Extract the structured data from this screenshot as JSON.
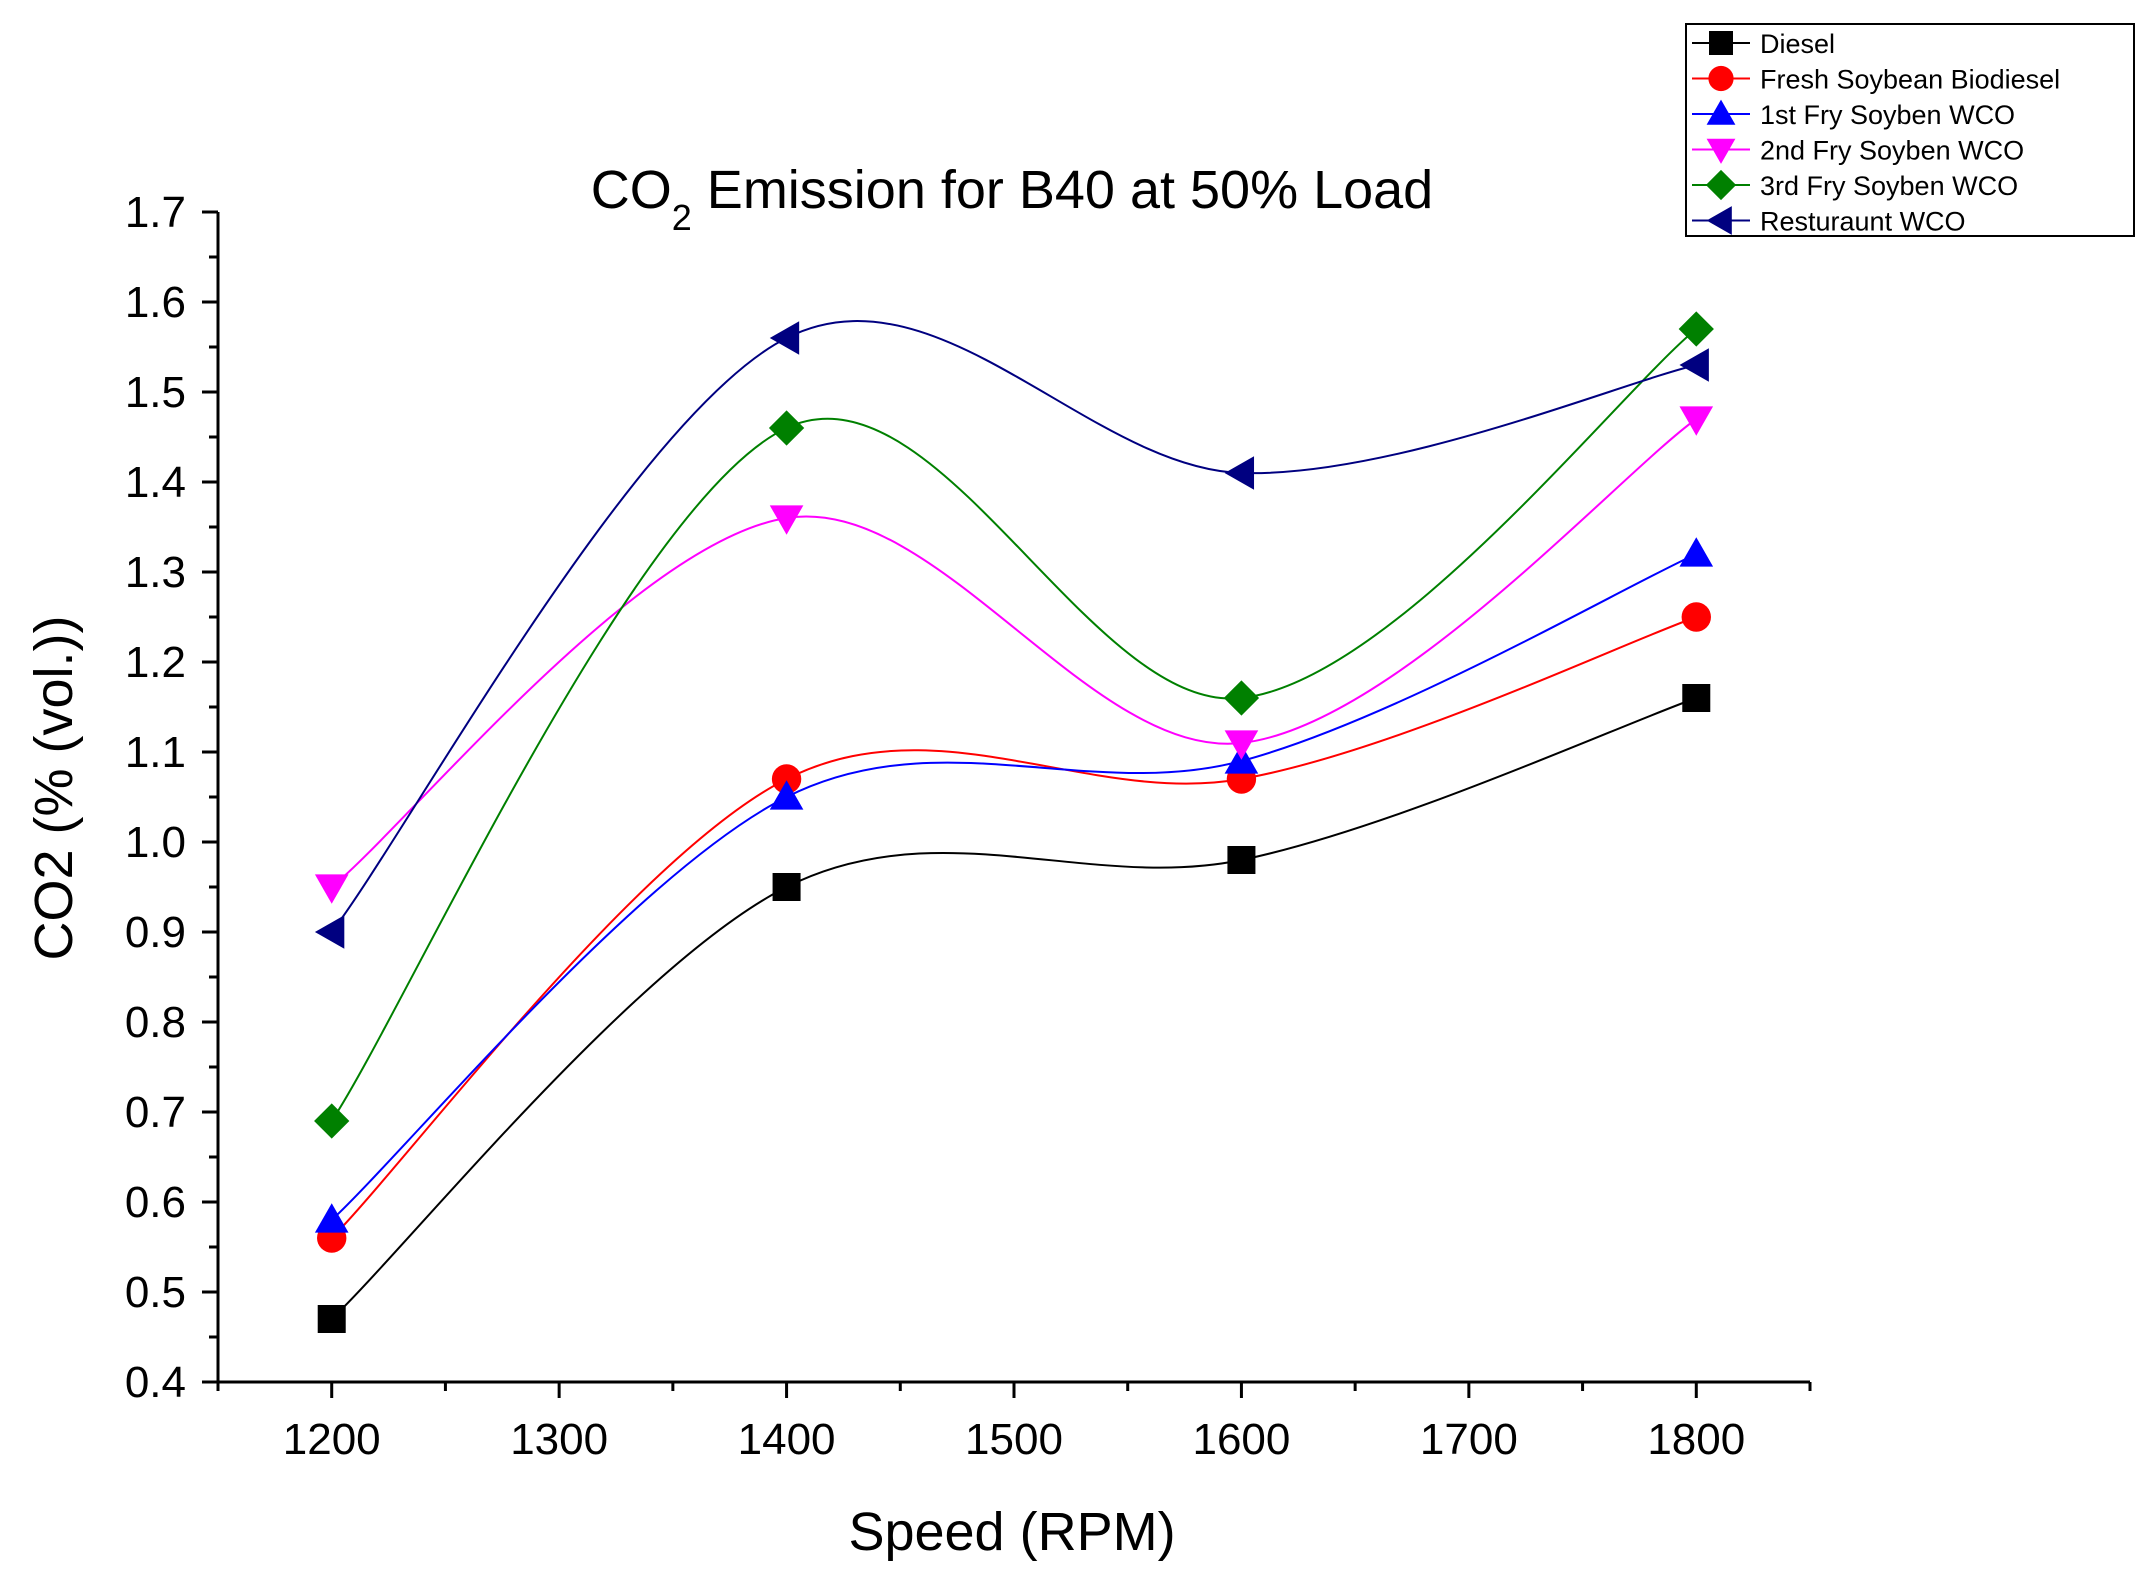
{
  "chart_data": {
    "type": "line",
    "title": "CO",
    "title_subscript": "2",
    "title_suffix": " Emission for B40 at 50% Load",
    "xlabel": "Speed (RPM)",
    "ylabel": "CO2 (% (vol.))",
    "xlim": [
      1150,
      1850
    ],
    "ylim": [
      0.4,
      1.7
    ],
    "xticks": [
      1200,
      1300,
      1400,
      1500,
      1600,
      1700,
      1800
    ],
    "xtick_labels": [
      "1200",
      "1300",
      "1400",
      "1500",
      "1600",
      "1700",
      "1800"
    ],
    "yticks": [
      0.4,
      0.5,
      0.6,
      0.7,
      0.8,
      0.9,
      1.0,
      1.1,
      1.2,
      1.3,
      1.4,
      1.5,
      1.6,
      1.7
    ],
    "ytick_labels": [
      "0.4",
      "0.5",
      "0.6",
      "0.7",
      "0.8",
      "0.9",
      "1.0",
      "1.1",
      "1.2",
      "1.3",
      "1.4",
      "1.5",
      "1.6",
      "1.7"
    ],
    "grid": false,
    "legend_position": "top-right",
    "x": [
      1200,
      1400,
      1600,
      1800
    ],
    "series": [
      {
        "name": "Diesel",
        "color": "#000000",
        "marker": "square",
        "values": [
          0.47,
          0.95,
          0.98,
          1.16
        ]
      },
      {
        "name": "Fresh Soybean Biodiesel",
        "color": "#ff0000",
        "marker": "circle",
        "values": [
          0.56,
          1.07,
          1.07,
          1.25
        ]
      },
      {
        "name": "1st Fry Soyben WCO",
        "color": "#0000ff",
        "marker": "triangle-up",
        "values": [
          0.58,
          1.05,
          1.09,
          1.32
        ]
      },
      {
        "name": "2nd Fry Soyben WCO",
        "color": "#ff00ff",
        "marker": "triangle-down",
        "values": [
          0.95,
          1.36,
          1.11,
          1.47
        ]
      },
      {
        "name": "3rd Fry Soyben WCO",
        "color": "#008000",
        "marker": "diamond",
        "values": [
          0.69,
          1.46,
          1.16,
          1.57
        ]
      },
      {
        "name": "Resturaunt WCO",
        "color": "#000080",
        "marker": "triangle-left",
        "values": [
          0.9,
          1.56,
          1.41,
          1.53
        ]
      }
    ]
  }
}
